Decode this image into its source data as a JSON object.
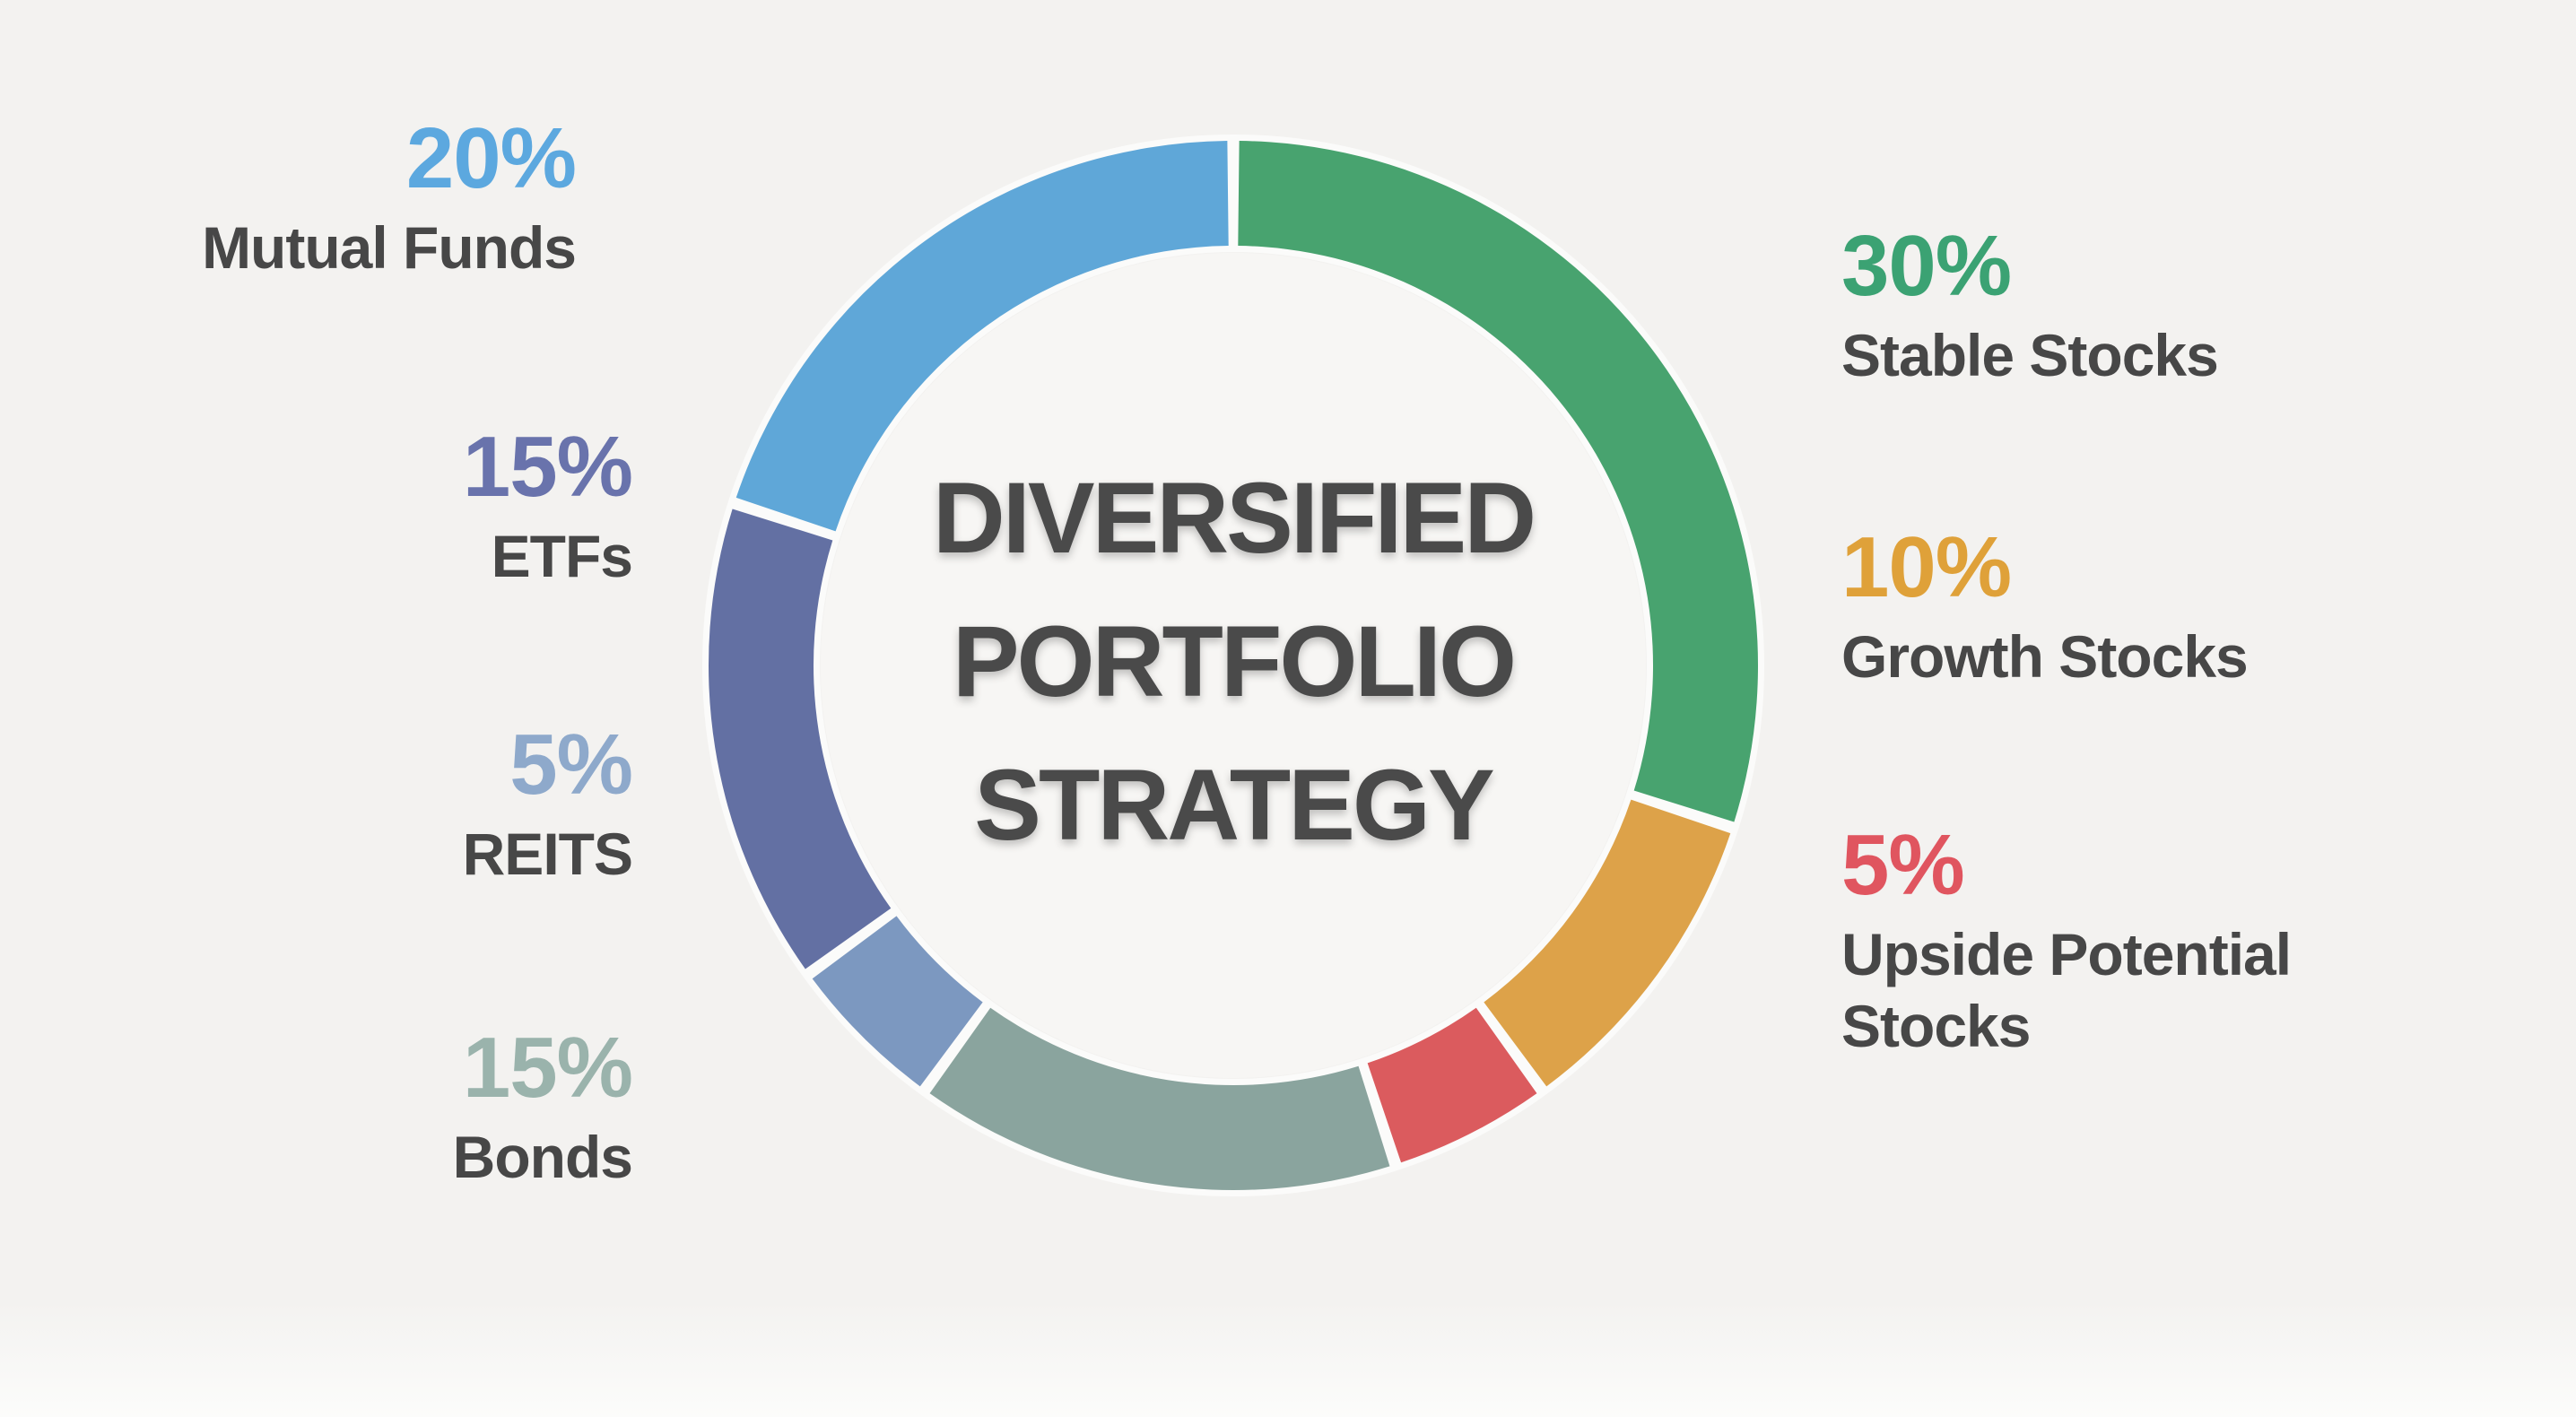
{
  "background_color": "#f3f2f0",
  "inner_circle_color": "#f7f6f4",
  "gap_ring_color": "#fbfbfa",
  "text_color": "#474747",
  "title": {
    "lines": [
      "DIVERSIFIED",
      "PORTFOLIO",
      "STRATEGY"
    ],
    "color": "#4a4a4a"
  },
  "chart_data": {
    "type": "pie",
    "variant": "donut",
    "title": "DIVERSIFIED PORTFOLIO STRATEGY",
    "start_angle_deg": 0,
    "direction": "clockwise",
    "total": 100,
    "segments": [
      {
        "label": "Stable Stocks",
        "value": 30,
        "color": "#48a36f"
      },
      {
        "label": "Growth Stocks",
        "value": 10,
        "color": "#dda249"
      },
      {
        "label": "Upside Potential Stocks",
        "value": 5,
        "color": "#db5b5e"
      },
      {
        "label": "Bonds",
        "value": 15,
        "color": "#8aa49e"
      },
      {
        "label": "REITS",
        "value": 5,
        "color": "#7c98c0"
      },
      {
        "label": "ETFs",
        "value": 15,
        "color": "#6370a3"
      },
      {
        "label": "Mutual Funds",
        "value": 20,
        "color": "#5fa7d8"
      }
    ]
  },
  "labels": {
    "left": [
      {
        "pct": "20%",
        "name": "Mutual Funds",
        "pct_color": "#5ca8df"
      },
      {
        "pct": "15%",
        "name": "ETFs",
        "pct_color": "#6973ac"
      },
      {
        "pct": "5%",
        "name": "REITS",
        "pct_color": "#8ea9cb"
      },
      {
        "pct": "15%",
        "name": "Bonds",
        "pct_color": "#9ab3ac"
      }
    ],
    "right": [
      {
        "pct": "30%",
        "name": "Stable Stocks",
        "pct_color": "#3ba273"
      },
      {
        "pct": "10%",
        "name": "Growth Stocks",
        "pct_color": "#dfa139"
      },
      {
        "pct": "5%",
        "name": "Upside Potential Stocks",
        "pct_color": "#e0555f"
      }
    ]
  }
}
